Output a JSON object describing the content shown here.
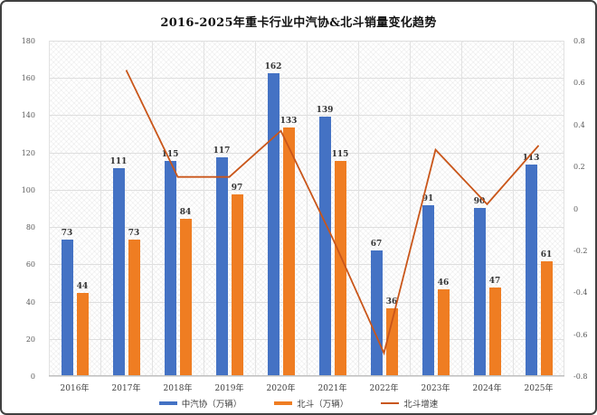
{
  "title": "2016-2025年重卡行业中汽协&北斗销量变化趋势",
  "chart_data": {
    "type": "bar",
    "title": "2016-2025年重卡行业中汽协&北斗销量变化趋势",
    "categories": [
      "2016年",
      "2017年",
      "2018年",
      "2019年",
      "2020年",
      "2021年",
      "2022年",
      "2023年",
      "2024年",
      "2025年"
    ],
    "series": [
      {
        "name": "中汽协（万辆）",
        "type": "bar",
        "axis": "left",
        "color": "#4472C4",
        "values": [
          73,
          111,
          115,
          117,
          162,
          139,
          67,
          91,
          90,
          113
        ]
      },
      {
        "name": "北斗（万辆）",
        "type": "bar",
        "axis": "left",
        "color": "#EF7D22",
        "values": [
          44,
          73,
          84,
          97,
          133,
          115,
          36,
          46,
          47,
          61
        ]
      },
      {
        "name": "北斗增速",
        "type": "line",
        "axis": "right",
        "color": "#C9561A",
        "values": [
          null,
          0.66,
          0.15,
          0.15,
          0.37,
          -0.14,
          -0.69,
          0.28,
          0.02,
          0.3
        ]
      }
    ],
    "left_axis": {
      "min": 0,
      "max": 180,
      "ticks": [
        "180",
        "160",
        "140",
        "120",
        "100",
        "80",
        "60",
        "40",
        "20",
        "0"
      ]
    },
    "right_axis": {
      "min": -0.8,
      "max": 0.8,
      "ticks": [
        "0.8",
        "0.6",
        "0.4",
        "0.2",
        "0",
        "-0.2",
        "-0.4",
        "-0.6",
        "-0.8"
      ]
    },
    "grid": true,
    "legend_position": "bottom"
  }
}
